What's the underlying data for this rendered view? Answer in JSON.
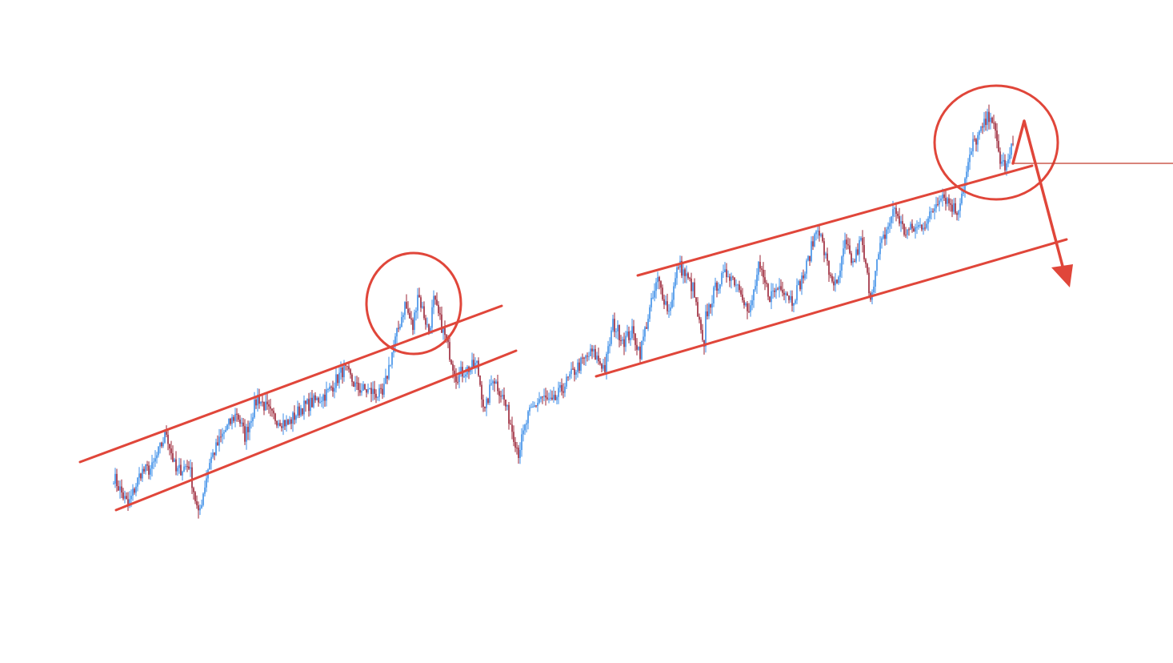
{
  "chart_data": {
    "type": "candlestick",
    "title": "",
    "xlabel": "",
    "ylabel": "",
    "axes_visible": false,
    "grid": false,
    "xlim": [
      -70,
      663
    ],
    "ylim": [
      0,
      103.5
    ],
    "colors": {
      "up": "#3b8ee8",
      "down": "#9b2335",
      "annotation": "#e0463a",
      "level_line": "#c0392b",
      "background": "#ffffff"
    },
    "close_path": {
      "x": [
        1,
        10,
        18,
        25,
        34,
        40,
        48,
        54,
        61,
        70,
        78,
        83,
        91,
        100,
        110,
        118,
        128,
        135,
        145,
        153,
        163,
        169,
        175,
        183,
        188,
        191,
        198,
        201,
        208,
        215,
        223,
        228,
        233,
        238,
        245,
        254,
        260,
        268,
        275,
        283,
        290,
        300,
        308,
        313,
        320,
        325,
        330,
        335,
        341,
        348,
        354,
        363,
        370,
        371,
        378,
        385,
        393,
        398,
        404,
        411,
        418,
        425,
        433,
        441,
        448,
        453,
        458,
        463,
        468,
        474,
        480,
        489,
        495,
        503,
        510,
        518,
        528,
        533,
        538,
        543,
        549,
        555,
        559,
        563
      ],
      "y": [
        29.1,
        24.5,
        29.8,
        30.4,
        36,
        29.8,
        31,
        22.9,
        31.6,
        36,
        39.1,
        35.4,
        41.6,
        38.5,
        37.3,
        39.8,
        41,
        42.3,
        46,
        42.9,
        42.3,
        41.6,
        48.5,
        56,
        52.3,
        57.9,
        51.6,
        56.6,
        51,
        44.8,
        46,
        46.6,
        39.1,
        44.8,
        41,
        32.9,
        38.5,
        41.6,
        40.4,
        43.5,
        46,
        48.5,
        46,
        52.9,
        50.4,
        51.6,
        48.5,
        54.1,
        59.8,
        54.8,
        62.3,
        58.5,
        48.5,
        54.1,
        59.1,
        61,
        58.5,
        54.1,
        61.6,
        57.3,
        59.1,
        56.6,
        61,
        68.5,
        61,
        58.5,
        65.4,
        62.3,
        66,
        57.3,
        64.8,
        71,
        67.3,
        67.9,
        69.1,
        73.5,
        70.4,
        75.4,
        81,
        82.9,
        86,
        78.5,
        77.3,
        81
      ]
    },
    "annotations": [
      {
        "kind": "ascending-channel",
        "label": ""
      },
      {
        "kind": "circle-highlight",
        "label": ""
      },
      {
        "kind": "ascending-channel",
        "label": ""
      },
      {
        "kind": "circle-highlight",
        "label": ""
      },
      {
        "kind": "horizontal-level",
        "label": ""
      },
      {
        "kind": "down-arrow",
        "label": ""
      }
    ]
  }
}
